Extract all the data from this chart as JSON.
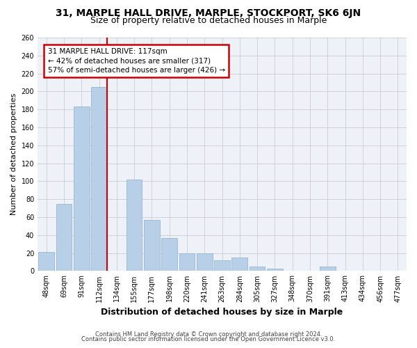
{
  "title": "31, MARPLE HALL DRIVE, MARPLE, STOCKPORT, SK6 6JN",
  "subtitle": "Size of property relative to detached houses in Marple",
  "xlabel": "Distribution of detached houses by size in Marple",
  "ylabel": "Number of detached properties",
  "categories": [
    "48sqm",
    "69sqm",
    "91sqm",
    "112sqm",
    "134sqm",
    "155sqm",
    "177sqm",
    "198sqm",
    "220sqm",
    "241sqm",
    "263sqm",
    "284sqm",
    "305sqm",
    "327sqm",
    "348sqm",
    "370sqm",
    "391sqm",
    "413sqm",
    "434sqm",
    "456sqm",
    "477sqm"
  ],
  "values": [
    21,
    75,
    183,
    205,
    0,
    102,
    57,
    37,
    20,
    20,
    12,
    15,
    5,
    3,
    0,
    0,
    5,
    0,
    0,
    0,
    0
  ],
  "bar_color": "#b8cfe8",
  "bar_edge_color": "#8ab0d0",
  "red_line_index": 3,
  "annotation_text": "31 MARPLE HALL DRIVE: 117sqm\n← 42% of detached houses are smaller (317)\n57% of semi-detached houses are larger (426) →",
  "annotation_box_color": "#ffffff",
  "annotation_box_edge_color": "#cc0000",
  "red_line_color": "#cc0000",
  "footer_line1": "Contains HM Land Registry data © Crown copyright and database right 2024.",
  "footer_line2": "Contains public sector information licensed under the Open Government Licence v3.0.",
  "ylim": [
    0,
    260
  ],
  "yticks": [
    0,
    20,
    40,
    60,
    80,
    100,
    120,
    140,
    160,
    180,
    200,
    220,
    240,
    260
  ],
  "grid_color": "#cccccc",
  "bg_color": "#eef2f8",
  "title_fontsize": 10,
  "subtitle_fontsize": 9,
  "ylabel_fontsize": 8,
  "xlabel_fontsize": 9,
  "tick_fontsize": 7,
  "footer_fontsize": 6,
  "annotation_fontsize": 7.5
}
